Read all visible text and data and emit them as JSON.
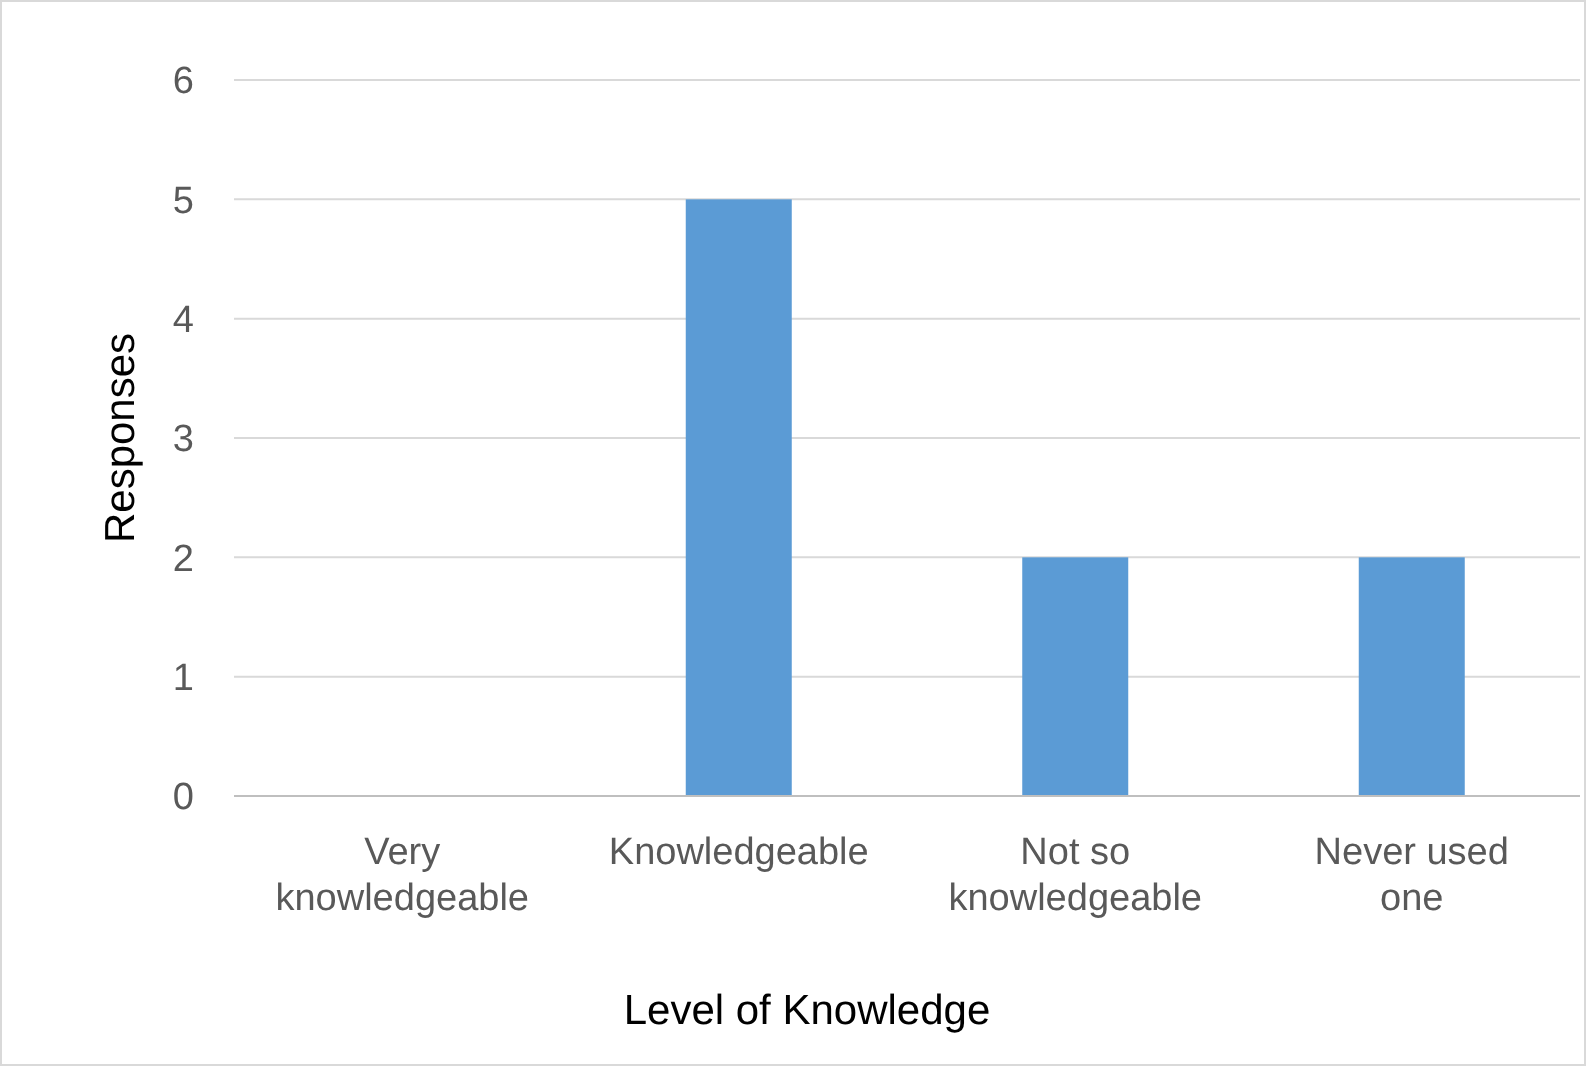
{
  "chart_data": {
    "type": "bar",
    "xlabel": "Level of Knowledge",
    "ylabel": "Responses",
    "categories": [
      "Very knowledgeable",
      "Knowledgeable",
      "Not so knowledgeable",
      "Never used one"
    ],
    "values": [
      0,
      5,
      2,
      2
    ],
    "color": "#5b9bd5",
    "ylim": [
      0,
      6
    ],
    "yticks": [
      0,
      1,
      2,
      3,
      4,
      5,
      6
    ],
    "grid": "y"
  }
}
